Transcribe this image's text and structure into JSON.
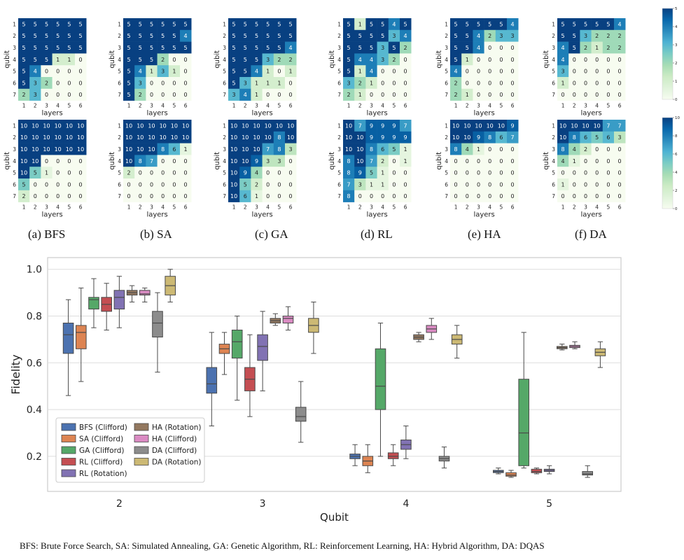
{
  "figure": {
    "colormap": {
      "name": "GnBu",
      "colors": [
        "#f7fcf0",
        "#e0f3db",
        "#ccebc5",
        "#a8ddb5",
        "#7bccc4",
        "#4eb3d3",
        "#2b8cbe",
        "#0868ac",
        "#084081"
      ]
    },
    "colorbars": [
      {
        "id": "top",
        "ticks": [
          "5",
          "4",
          "3",
          "2",
          "1",
          "0"
        ],
        "max": 5
      },
      {
        "id": "bottom",
        "ticks": [
          "10",
          "8",
          "6",
          "4",
          "2",
          "0"
        ],
        "max": 10
      }
    ],
    "panel_captions": [
      "(a) BFS",
      "(b) SA",
      "(c) GA",
      "(d) RL",
      "(e) HA",
      "(f) DA"
    ],
    "footnote": "BFS: Brute Force Search, SA:  Simulated Annealing, GA: Genetic Algorithm, RL: Reinforcement Learning, HA: Hybrid Algorithm, DA: DQAS"
  },
  "chart_data": [
    {
      "type": "heatmap",
      "group": "top-row",
      "xlabel": "layers",
      "ylabel": "qubit",
      "x_ticks": [
        "1",
        "2",
        "3",
        "4",
        "5",
        "6"
      ],
      "y_ticks": [
        "1",
        "2",
        "3",
        "4",
        "5",
        "6",
        "7"
      ],
      "vmin": 0,
      "vmax": 5,
      "panels": [
        {
          "name": "BFS",
          "values": [
            [
              5,
              5,
              5,
              5,
              5,
              5
            ],
            [
              5,
              5,
              5,
              5,
              5,
              5
            ],
            [
              5,
              5,
              5,
              5,
              5,
              5
            ],
            [
              5,
              5,
              5,
              1,
              1,
              0
            ],
            [
              5,
              4,
              0,
              0,
              0,
              0
            ],
            [
              5,
              3,
              2,
              0,
              0,
              0
            ],
            [
              2,
              3,
              0,
              0,
              0,
              0
            ]
          ]
        },
        {
          "name": "SA",
          "values": [
            [
              5,
              5,
              5,
              5,
              5,
              5
            ],
            [
              5,
              5,
              5,
              5,
              5,
              4
            ],
            [
              5,
              5,
              5,
              5,
              5,
              5
            ],
            [
              5,
              5,
              5,
              2,
              0,
              0
            ],
            [
              5,
              4,
              1,
              3,
              1,
              0
            ],
            [
              5,
              3,
              0,
              0,
              0,
              0
            ],
            [
              5,
              2,
              0,
              0,
              0,
              0
            ]
          ]
        },
        {
          "name": "GA",
          "values": [
            [
              5,
              5,
              5,
              5,
              5,
              5
            ],
            [
              5,
              5,
              5,
              5,
              5,
              5
            ],
            [
              5,
              5,
              5,
              5,
              5,
              4
            ],
            [
              5,
              5,
              5,
              3,
              2,
              2
            ],
            [
              5,
              5,
              4,
              1,
              0,
              1
            ],
            [
              5,
              3,
              1,
              1,
              1,
              0
            ],
            [
              3,
              4,
              1,
              0,
              0,
              0
            ]
          ]
        },
        {
          "name": "RL",
          "values": [
            [
              5,
              1,
              5,
              5,
              4,
              5
            ],
            [
              5,
              5,
              5,
              5,
              3,
              4
            ],
            [
              5,
              5,
              5,
              3,
              5,
              2
            ],
            [
              5,
              4,
              4,
              3,
              2,
              0
            ],
            [
              5,
              1,
              4,
              0,
              0,
              0
            ],
            [
              3,
              2,
              1,
              0,
              0,
              0
            ],
            [
              2,
              1,
              0,
              0,
              0,
              0
            ]
          ]
        },
        {
          "name": "HA",
          "values": [
            [
              5,
              5,
              5,
              5,
              5,
              4
            ],
            [
              5,
              5,
              4,
              2,
              3,
              3
            ],
            [
              5,
              5,
              4,
              0,
              0,
              0
            ],
            [
              5,
              1,
              0,
              0,
              0,
              0
            ],
            [
              4,
              0,
              0,
              0,
              0,
              0
            ],
            [
              2,
              0,
              0,
              0,
              0,
              0
            ],
            [
              2,
              1,
              0,
              0,
              0,
              0
            ]
          ]
        },
        {
          "name": "DA",
          "values": [
            [
              5,
              5,
              5,
              5,
              5,
              4
            ],
            [
              5,
              5,
              3,
              2,
              2,
              2
            ],
            [
              4,
              5,
              2,
              1,
              2,
              2
            ],
            [
              4,
              0,
              0,
              0,
              0,
              0
            ],
            [
              3,
              0,
              0,
              0,
              0,
              0
            ],
            [
              1,
              0,
              0,
              0,
              0,
              0
            ],
            [
              0,
              0,
              0,
              0,
              0,
              0
            ]
          ]
        }
      ]
    },
    {
      "type": "heatmap",
      "group": "bottom-row",
      "xlabel": "layers",
      "ylabel": "qubit",
      "x_ticks": [
        "1",
        "2",
        "3",
        "4",
        "5",
        "6"
      ],
      "y_ticks": [
        "1",
        "2",
        "3",
        "4",
        "5",
        "6",
        "7"
      ],
      "vmin": 0,
      "vmax": 10,
      "panels": [
        {
          "name": "BFS",
          "values": [
            [
              10,
              10,
              10,
              10,
              10,
              10
            ],
            [
              10,
              10,
              10,
              10,
              10,
              10
            ],
            [
              10,
              10,
              10,
              10,
              10,
              10
            ],
            [
              10,
              10,
              0,
              0,
              0,
              0
            ],
            [
              10,
              5,
              1,
              0,
              0,
              0
            ],
            [
              5,
              0,
              0,
              0,
              0,
              0
            ],
            [
              2,
              0,
              0,
              0,
              0,
              0
            ]
          ]
        },
        {
          "name": "SA",
          "values": [
            [
              10,
              10,
              10,
              10,
              10,
              10
            ],
            [
              10,
              10,
              10,
              10,
              10,
              10
            ],
            [
              10,
              10,
              10,
              8,
              6,
              1
            ],
            [
              10,
              8,
              7,
              0,
              0,
              0
            ],
            [
              2,
              0,
              0,
              0,
              0,
              0
            ],
            [
              0,
              0,
              0,
              0,
              0,
              0
            ],
            [
              0,
              0,
              0,
              0,
              0,
              0
            ]
          ]
        },
        {
          "name": "GA",
          "values": [
            [
              10,
              10,
              10,
              10,
              10,
              10
            ],
            [
              10,
              10,
              10,
              10,
              8,
              10
            ],
            [
              10,
              10,
              10,
              7,
              8,
              3
            ],
            [
              10,
              10,
              9,
              3,
              3,
              0
            ],
            [
              10,
              9,
              4,
              0,
              0,
              0
            ],
            [
              10,
              5,
              2,
              0,
              0,
              0
            ],
            [
              10,
              6,
              1,
              0,
              0,
              0
            ]
          ]
        },
        {
          "name": "RL",
          "values": [
            [
              10,
              7,
              9,
              9,
              9,
              7
            ],
            [
              10,
              10,
              9,
              9,
              9,
              9
            ],
            [
              10,
              10,
              8,
              6,
              5,
              1
            ],
            [
              8,
              10,
              7,
              2,
              0,
              1
            ],
            [
              8,
              9,
              5,
              1,
              0,
              0
            ],
            [
              7,
              3,
              1,
              1,
              0,
              0
            ],
            [
              8,
              0,
              0,
              0,
              0,
              0
            ]
          ]
        },
        {
          "name": "HA",
          "values": [
            [
              10,
              10,
              10,
              10,
              10,
              9
            ],
            [
              10,
              10,
              9,
              8,
              6,
              7
            ],
            [
              8,
              4,
              1,
              0,
              0,
              0
            ],
            [
              0,
              0,
              0,
              0,
              0,
              0
            ],
            [
              0,
              0,
              0,
              0,
              0,
              0
            ],
            [
              0,
              0,
              0,
              0,
              0,
              0
            ],
            [
              0,
              0,
              0,
              0,
              0,
              0
            ]
          ]
        },
        {
          "name": "DA",
          "values": [
            [
              10,
              10,
              10,
              10,
              7,
              7
            ],
            [
              10,
              8,
              6,
              5,
              6,
              3
            ],
            [
              8,
              4,
              2,
              0,
              0,
              0
            ],
            [
              4,
              1,
              0,
              0,
              0,
              0
            ],
            [
              0,
              0,
              0,
              0,
              0,
              0
            ],
            [
              1,
              0,
              0,
              0,
              0,
              0
            ],
            [
              0,
              0,
              0,
              0,
              0,
              0
            ]
          ]
        }
      ]
    },
    {
      "type": "box",
      "xlabel": "Qubit",
      "ylabel": "Fidelity",
      "ylim": [
        0.05,
        1.05
      ],
      "yticks": [
        "0.2",
        "0.4",
        "0.6",
        "0.8",
        "1.0"
      ],
      "categories": [
        "2",
        "3",
        "4",
        "5"
      ],
      "legend": {
        "placement": "lower-left",
        "columns": 2
      },
      "series": [
        {
          "name": "BFS (Clifford)",
          "color": "#4c72b0",
          "stats": {
            "2": [
              0.46,
              0.64,
              0.72,
              0.77,
              0.87
            ],
            "3": [
              0.33,
              0.47,
              0.51,
              0.58,
              0.73
            ],
            "4": [
              0.16,
              0.19,
              0.2,
              0.21,
              0.25
            ],
            "5": [
              0.125,
              0.13,
              0.135,
              0.14,
              0.15
            ]
          }
        },
        {
          "name": "SA (Clifford)",
          "color": "#dd8452",
          "stats": {
            "2": [
              0.52,
              0.66,
              0.73,
              0.76,
              0.92
            ],
            "3": [
              0.55,
              0.64,
              0.66,
              0.68,
              0.73
            ],
            "4": [
              0.13,
              0.16,
              0.18,
              0.2,
              0.25
            ],
            "5": [
              0.11,
              0.115,
              0.12,
              0.13,
              0.14
            ]
          }
        },
        {
          "name": "GA (Clifford)",
          "color": "#55a868",
          "stats": {
            "2": [
              0.75,
              0.83,
              0.87,
              0.88,
              0.96
            ],
            "3": [
              0.44,
              0.62,
              0.69,
              0.74,
              0.8
            ],
            "4": [
              0.2,
              0.4,
              0.5,
              0.66,
              0.77
            ],
            "5": [
              0.15,
              0.16,
              0.3,
              0.53,
              0.73
            ]
          }
        },
        {
          "name": "RL (Clifford)",
          "color": "#c44e52",
          "stats": {
            "2": [
              0.74,
              0.82,
              0.85,
              0.88,
              0.94
            ],
            "3": [
              0.37,
              0.48,
              0.53,
              0.58,
              0.72
            ],
            "4": [
              0.16,
              0.19,
              0.2,
              0.215,
              0.25
            ],
            "5": [
              0.125,
              0.13,
              0.135,
              0.145,
              0.15
            ]
          }
        },
        {
          "name": "RL (Rotation)",
          "color": "#8172b3",
          "stats": {
            "2": [
              0.75,
              0.83,
              0.88,
              0.91,
              0.97
            ],
            "3": [
              0.48,
              0.61,
              0.67,
              0.72,
              0.82
            ],
            "4": [
              0.19,
              0.23,
              0.25,
              0.27,
              0.33
            ],
            "5": [
              0.125,
              0.135,
              0.14,
              0.145,
              0.16
            ]
          }
        },
        {
          "name": "HA (Rotation)",
          "color": "#937860",
          "stats": {
            "2": [
              0.86,
              0.89,
              0.9,
              0.91,
              0.93
            ],
            "3": [
              0.76,
              0.77,
              0.78,
              0.79,
              0.81
            ],
            "4": [
              0.69,
              0.7,
              0.71,
              0.72,
              0.73
            ],
            "5": [
              0.655,
              0.66,
              0.665,
              0.67,
              0.68
            ]
          }
        },
        {
          "name": "HA (Clifford)",
          "color": "#da8bc3",
          "stats": {
            "2": [
              0.86,
              0.89,
              0.895,
              0.91,
              0.92
            ],
            "3": [
              0.74,
              0.77,
              0.79,
              0.8,
              0.84
            ],
            "4": [
              0.7,
              0.73,
              0.745,
              0.76,
              0.79
            ],
            "5": [
              0.66,
              0.665,
              0.67,
              0.675,
              0.69
            ]
          }
        },
        {
          "name": "DA (Clifford)",
          "color": "#8c8c8c",
          "stats": {
            "2": [
              0.56,
              0.71,
              0.77,
              0.82,
              0.9
            ],
            "3": [
              0.26,
              0.35,
              0.37,
              0.41,
              0.52
            ],
            "4": [
              0.15,
              0.18,
              0.19,
              0.2,
              0.24
            ],
            "5": [
              0.11,
              0.12,
              0.125,
              0.135,
              0.16
            ]
          }
        },
        {
          "name": "DA (Rotation)",
          "color": "#ccb974",
          "stats": {
            "2": [
              0.86,
              0.89,
              0.93,
              0.97,
              1.0
            ],
            "3": [
              0.64,
              0.73,
              0.76,
              0.79,
              0.86
            ],
            "4": [
              0.62,
              0.68,
              0.7,
              0.72,
              0.76
            ],
            "5": [
              0.58,
              0.63,
              0.645,
              0.66,
              0.69
            ]
          }
        }
      ]
    }
  ]
}
